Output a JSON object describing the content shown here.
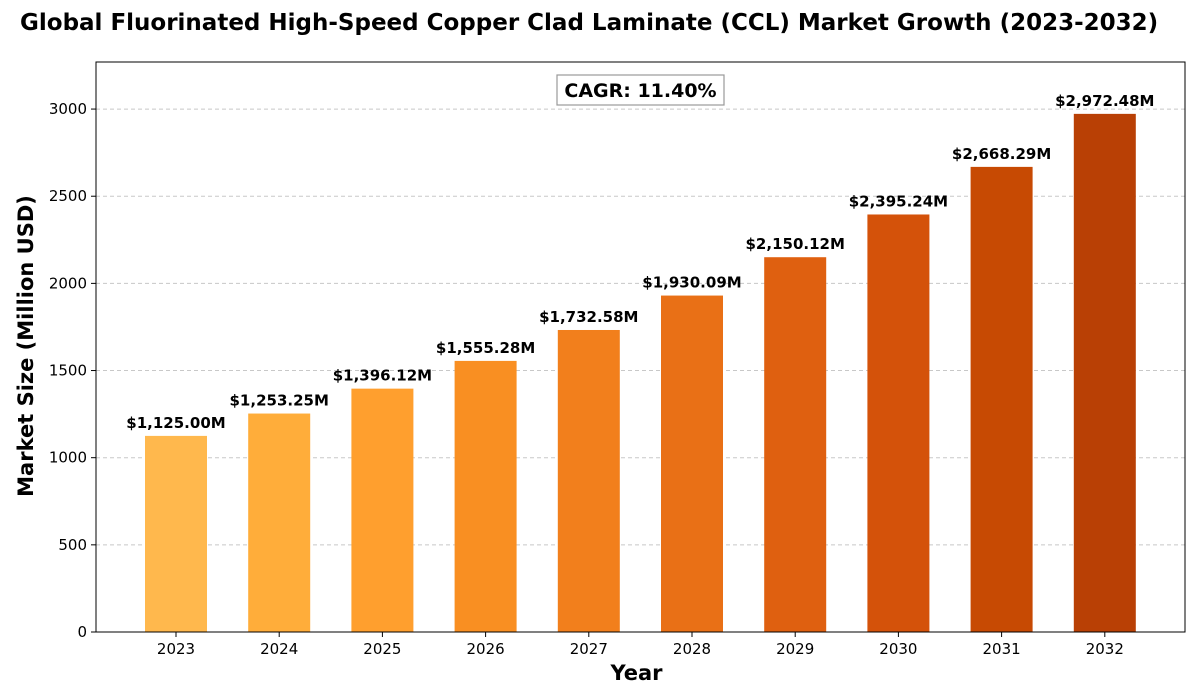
{
  "chart_data": {
    "type": "bar",
    "title": "Global Fluorinated High-Speed Copper Clad Laminate (CCL) Market Growth (2023-2032)",
    "xlabel": "Year",
    "ylabel": "Market Size (Million USD)",
    "categories": [
      "2023",
      "2024",
      "2025",
      "2026",
      "2027",
      "2028",
      "2029",
      "2030",
      "2031",
      "2032"
    ],
    "values": [
      1125.0,
      1253.25,
      1396.12,
      1555.28,
      1732.58,
      1930.09,
      2150.12,
      2395.24,
      2668.29,
      2972.48
    ],
    "data_labels": [
      "$1,125.00M",
      "$1,253.25M",
      "$1,396.12M",
      "$1,555.28M",
      "$1,732.58M",
      "$1,930.09M",
      "$2,150.12M",
      "$2,395.24M",
      "$2,668.29M",
      "$2,972.48M"
    ],
    "bar_colors": [
      "#FFB84D",
      "#FFAD3A",
      "#FF9F2E",
      "#F98F22",
      "#F27F1C",
      "#E97016",
      "#DF6010",
      "#D4520A",
      "#C74A03",
      "#B94005"
    ],
    "ylim": [
      0,
      3270
    ],
    "yticks": [
      0,
      500,
      1000,
      1500,
      2000,
      2500,
      3000
    ],
    "grid": "y-dashed",
    "annotation": "CAGR: 11.40%"
  }
}
